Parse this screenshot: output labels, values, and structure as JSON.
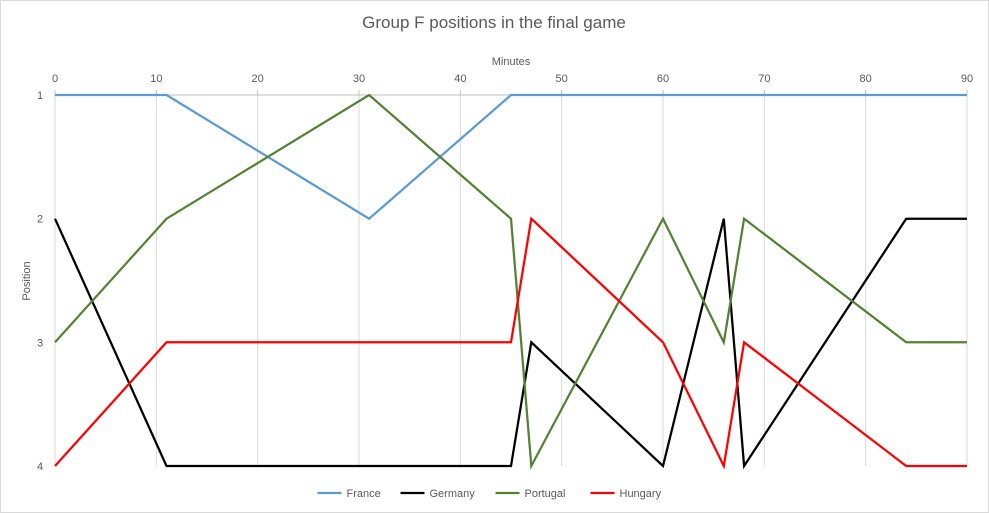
{
  "chart_data": {
    "type": "line",
    "title": "Group F positions in the final game",
    "xlabel": "Minutes",
    "ylabel": "Position",
    "xlim": [
      0,
      90
    ],
    "ylim": [
      1,
      4
    ],
    "y_inverted": true,
    "x_axis_position": "top",
    "x_ticks": [
      0,
      10,
      20,
      30,
      40,
      50,
      60,
      70,
      80,
      90
    ],
    "y_ticks": [
      1,
      2,
      3,
      4
    ],
    "grid": "vertical",
    "legend": "bottom",
    "series": [
      {
        "name": "France",
        "color": "#5b9bd5",
        "points": [
          [
            0,
            1
          ],
          [
            11,
            1
          ],
          [
            31,
            2
          ],
          [
            45,
            1
          ],
          [
            90,
            1
          ]
        ]
      },
      {
        "name": "Germany",
        "color": "#000000",
        "points": [
          [
            0,
            2
          ],
          [
            11,
            4
          ],
          [
            45,
            4
          ],
          [
            47,
            3
          ],
          [
            60,
            4
          ],
          [
            66,
            2
          ],
          [
            68,
            4
          ],
          [
            84,
            2
          ],
          [
            90,
            2
          ]
        ]
      },
      {
        "name": "Portugal",
        "color": "#548235",
        "points": [
          [
            0,
            3
          ],
          [
            11,
            2
          ],
          [
            31,
            1
          ],
          [
            45,
            2
          ],
          [
            47,
            4
          ],
          [
            60,
            2
          ],
          [
            66,
            3
          ],
          [
            68,
            2
          ],
          [
            84,
            3
          ],
          [
            90,
            3
          ]
        ]
      },
      {
        "name": "Hungary",
        "color": "#ff0000",
        "points": [
          [
            0,
            4
          ],
          [
            11,
            3
          ],
          [
            45,
            3
          ],
          [
            47,
            2
          ],
          [
            60,
            3
          ],
          [
            66,
            4
          ],
          [
            68,
            3
          ],
          [
            84,
            4
          ],
          [
            90,
            4
          ]
        ]
      }
    ]
  }
}
